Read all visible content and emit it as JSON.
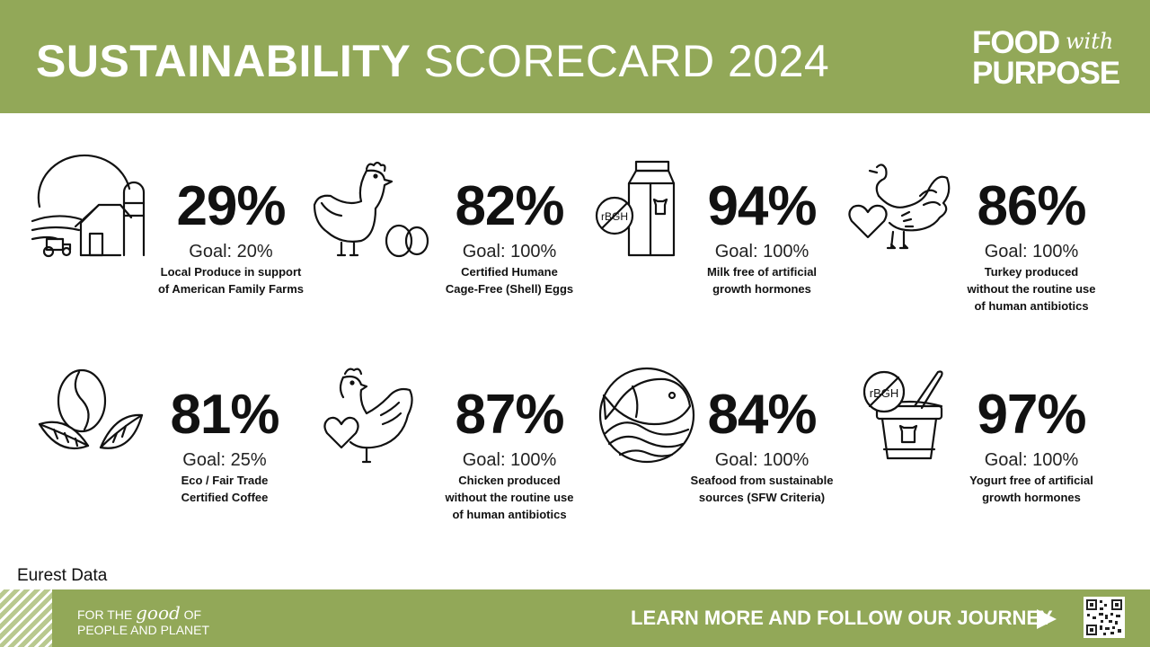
{
  "header": {
    "title_bold": "SUSTAINABILITY",
    "title_light": "SCORECARD 2024",
    "logo": {
      "line1": "FOOD",
      "script": "with",
      "line2": "PURPOSE"
    }
  },
  "stats": [
    {
      "id": "local-produce",
      "percent": "29%",
      "goal": "Goal: 20%",
      "desc": [
        "Local Produce in support",
        "of American Family Farms"
      ],
      "icon": "farm-icon"
    },
    {
      "id": "eggs",
      "percent": "82%",
      "goal": "Goal: 100%",
      "desc": [
        "Certified Humane",
        "Cage-Free (Shell) Eggs"
      ],
      "icon": "hen-eggs-icon"
    },
    {
      "id": "milk",
      "percent": "94%",
      "goal": "Goal: 100%",
      "desc": [
        "Milk free of artificial",
        "growth hormones"
      ],
      "icon": "milk-carton-icon",
      "badge": "rBGH"
    },
    {
      "id": "turkey",
      "percent": "86%",
      "goal": "Goal: 100%",
      "desc": [
        "Turkey produced",
        "without the routine use",
        "of human antibiotics"
      ],
      "icon": "turkey-heart-icon"
    },
    {
      "id": "coffee",
      "percent": "81%",
      "goal": "Goal: 25%",
      "desc": [
        "Eco / Fair Trade",
        "Certified Coffee"
      ],
      "icon": "coffee-bean-icon"
    },
    {
      "id": "chicken",
      "percent": "87%",
      "goal": "Goal: 100%",
      "desc": [
        "Chicken produced",
        "without the routine use",
        "of human antibiotics"
      ],
      "icon": "chicken-heart-icon"
    },
    {
      "id": "seafood",
      "percent": "84%",
      "goal": "Goal: 100%",
      "desc": [
        "Seafood from sustainable",
        "sources (SFW Criteria)"
      ],
      "icon": "fish-wave-icon"
    },
    {
      "id": "yogurt",
      "percent": "97%",
      "goal": "Goal: 100%",
      "desc": [
        "Yogurt free of artificial",
        "growth hormones"
      ],
      "icon": "yogurt-cup-icon",
      "badge": "rBGH"
    }
  ],
  "source": "Eurest Data",
  "footer": {
    "tagline_prefix": "FOR THE",
    "tagline_good": "good",
    "tagline_of": "OF",
    "tagline_line2": "PEOPLE AND PLANET",
    "cta": "LEARN MORE AND FOLLOW OUR JOURNEY"
  },
  "colors": {
    "brand_green": "#92a858",
    "text": "#111111",
    "white": "#ffffff"
  }
}
